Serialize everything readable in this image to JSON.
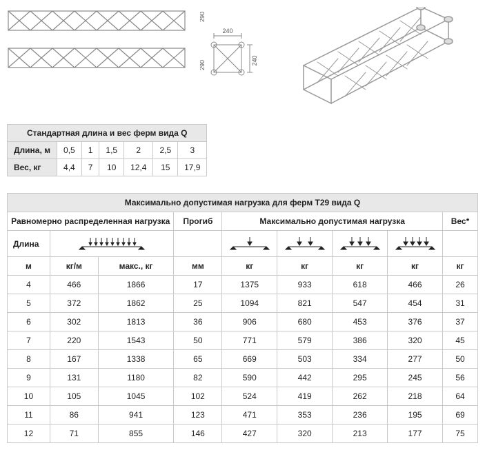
{
  "diagram": {
    "side_height_label": "290",
    "cross_width_label": "240",
    "cross_height_label": "240"
  },
  "small_table": {
    "title": "Стандартная длина и вес ферм вида Q",
    "row_labels": [
      "Длина, м",
      "Вес, кг"
    ],
    "columns": [
      "0,5",
      "1",
      "1,5",
      "2",
      "2,5",
      "3"
    ],
    "values": [
      "4,4",
      "7",
      "10",
      "12,4",
      "15",
      "17,9"
    ]
  },
  "big_table": {
    "title": "Максимально допустимая нагрузка для ферм T29 вида Q",
    "group_udl": "Равномерно распределенная нагрузка",
    "group_deflect": "Прогиб",
    "group_maxload": "Максимально допустимая нагрузка",
    "group_weight": "Вес*",
    "col_length": "Длина",
    "units": {
      "m": "м",
      "kgpm": "кг/м",
      "maxkg": "макс., кг",
      "mm": "мм",
      "kg": "кг"
    },
    "rows": [
      {
        "len": "4",
        "kgpm": "466",
        "maxkg": "1866",
        "defl": "17",
        "p1": "1375",
        "p2": "933",
        "p3": "618",
        "p4": "466",
        "w": "26"
      },
      {
        "len": "5",
        "kgpm": "372",
        "maxkg": "1862",
        "defl": "25",
        "p1": "1094",
        "p2": "821",
        "p3": "547",
        "p4": "454",
        "w": "31"
      },
      {
        "len": "6",
        "kgpm": "302",
        "maxkg": "1813",
        "defl": "36",
        "p1": "906",
        "p2": "680",
        "p3": "453",
        "p4": "376",
        "w": "37"
      },
      {
        "len": "7",
        "kgpm": "220",
        "maxkg": "1543",
        "defl": "50",
        "p1": "771",
        "p2": "579",
        "p3": "386",
        "p4": "320",
        "w": "45"
      },
      {
        "len": "8",
        "kgpm": "167",
        "maxkg": "1338",
        "defl": "65",
        "p1": "669",
        "p2": "503",
        "p3": "334",
        "p4": "277",
        "w": "50"
      },
      {
        "len": "9",
        "kgpm": "131",
        "maxkg": "1180",
        "defl": "82",
        "p1": "590",
        "p2": "442",
        "p3": "295",
        "p4": "245",
        "w": "56"
      },
      {
        "len": "10",
        "kgpm": "105",
        "maxkg": "1045",
        "defl": "102",
        "p1": "524",
        "p2": "419",
        "p3": "262",
        "p4": "218",
        "w": "64"
      },
      {
        "len": "11",
        "kgpm": "86",
        "maxkg": "941",
        "defl": "123",
        "p1": "471",
        "p2": "353",
        "p3": "236",
        "p4": "195",
        "w": "69"
      },
      {
        "len": "12",
        "kgpm": "71",
        "maxkg": "855",
        "defl": "146",
        "p1": "427",
        "p2": "320",
        "p3": "213",
        "p4": "177",
        "w": "75"
      }
    ]
  },
  "colors": {
    "border": "#c8c8c8",
    "header_bg": "#e8e8e8",
    "truss": "#888888"
  }
}
